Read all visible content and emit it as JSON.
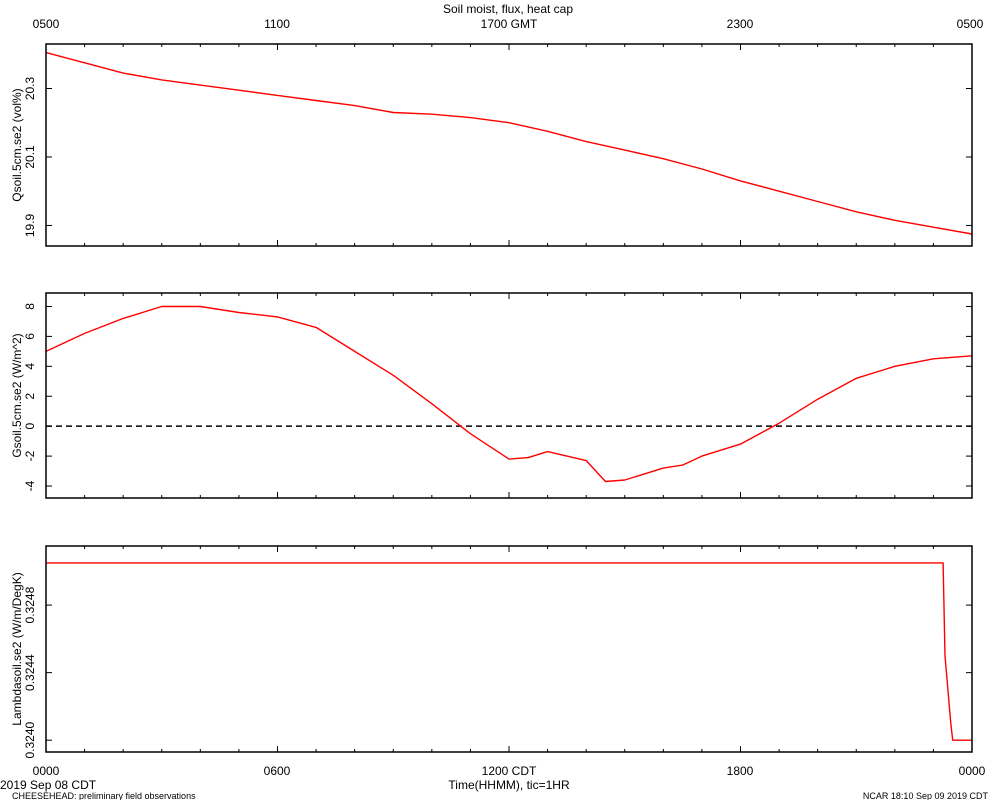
{
  "title": "Soil moist, flux, heat cap",
  "top_axis": {
    "ticks": [
      "0500",
      "1100",
      "1700 GMT",
      "2300",
      "0500"
    ]
  },
  "bottom_axis": {
    "ticks": [
      "0000",
      "0600",
      "1200 CDT",
      "1800",
      "0000"
    ],
    "label": "Time(HHMM), tic=1HR",
    "date_label": "2019 Sep 08 CDT"
  },
  "footer": {
    "left": "CHEESEHEAD: preliminary field observations",
    "right": "NCAR 18:10 Sep 09 2019 CDT"
  },
  "colors": {
    "series": "#ff0000",
    "axes": "#000000",
    "zero_line": "#000000"
  },
  "chart_data": [
    {
      "type": "line",
      "ylabel": "Qsoil.5cm.se2 (vol%)",
      "ylim": [
        19.84,
        20.43
      ],
      "yticks": [
        "19.9",
        "20.1",
        "20.3"
      ],
      "x": [
        0,
        1,
        2,
        3,
        4,
        5,
        6,
        7,
        8,
        9,
        10,
        11,
        12,
        13,
        14,
        15,
        16,
        17,
        18,
        19,
        20,
        21,
        22,
        23,
        24
      ],
      "series": [
        {
          "values": [
            20.405,
            20.375,
            20.345,
            20.325,
            20.31,
            20.295,
            20.28,
            20.265,
            20.25,
            20.23,
            20.225,
            20.215,
            20.2,
            20.175,
            20.145,
            20.12,
            20.095,
            20.065,
            20.03,
            20.0,
            19.97,
            19.94,
            19.915,
            19.895,
            19.875
          ]
        }
      ]
    },
    {
      "type": "line",
      "ylabel": "Gsoil.5cm.se2 (W/m^2)",
      "ylim": [
        -4.8,
        8.9
      ],
      "yticks": [
        "-4",
        "-2",
        "0",
        "2",
        "4",
        "6",
        "8"
      ],
      "reference_line": {
        "y": 0,
        "style": "dashed"
      },
      "x": [
        0,
        1,
        2,
        3,
        4,
        5,
        6,
        7,
        8,
        9,
        10,
        11,
        12,
        12.5,
        13,
        14,
        14.5,
        15,
        15.5,
        16,
        16.5,
        17,
        18,
        19,
        20,
        21,
        22,
        23,
        24
      ],
      "series": [
        {
          "values": [
            5.0,
            6.2,
            7.2,
            8.0,
            8.0,
            7.6,
            7.3,
            6.6,
            5.0,
            3.4,
            1.5,
            -0.5,
            -2.2,
            -2.1,
            -1.7,
            -2.3,
            -3.7,
            -3.6,
            -3.2,
            -2.8,
            -2.6,
            -2.0,
            -1.2,
            0.2,
            1.8,
            3.2,
            4.0,
            4.5,
            4.7
          ]
        }
      ]
    },
    {
      "type": "line",
      "ylabel": "Lambdasoil.se2 (W/m/DegK)",
      "ylim": [
        0.32393,
        0.32515
      ],
      "yticks": [
        "0.3240",
        "0.3244",
        "0.3248"
      ],
      "x": [
        0,
        23.25,
        23.3,
        23.45,
        23.5,
        24
      ],
      "series": [
        {
          "values": [
            0.32505,
            0.32505,
            0.3245,
            0.3241,
            0.324,
            0.324
          ]
        }
      ]
    }
  ]
}
